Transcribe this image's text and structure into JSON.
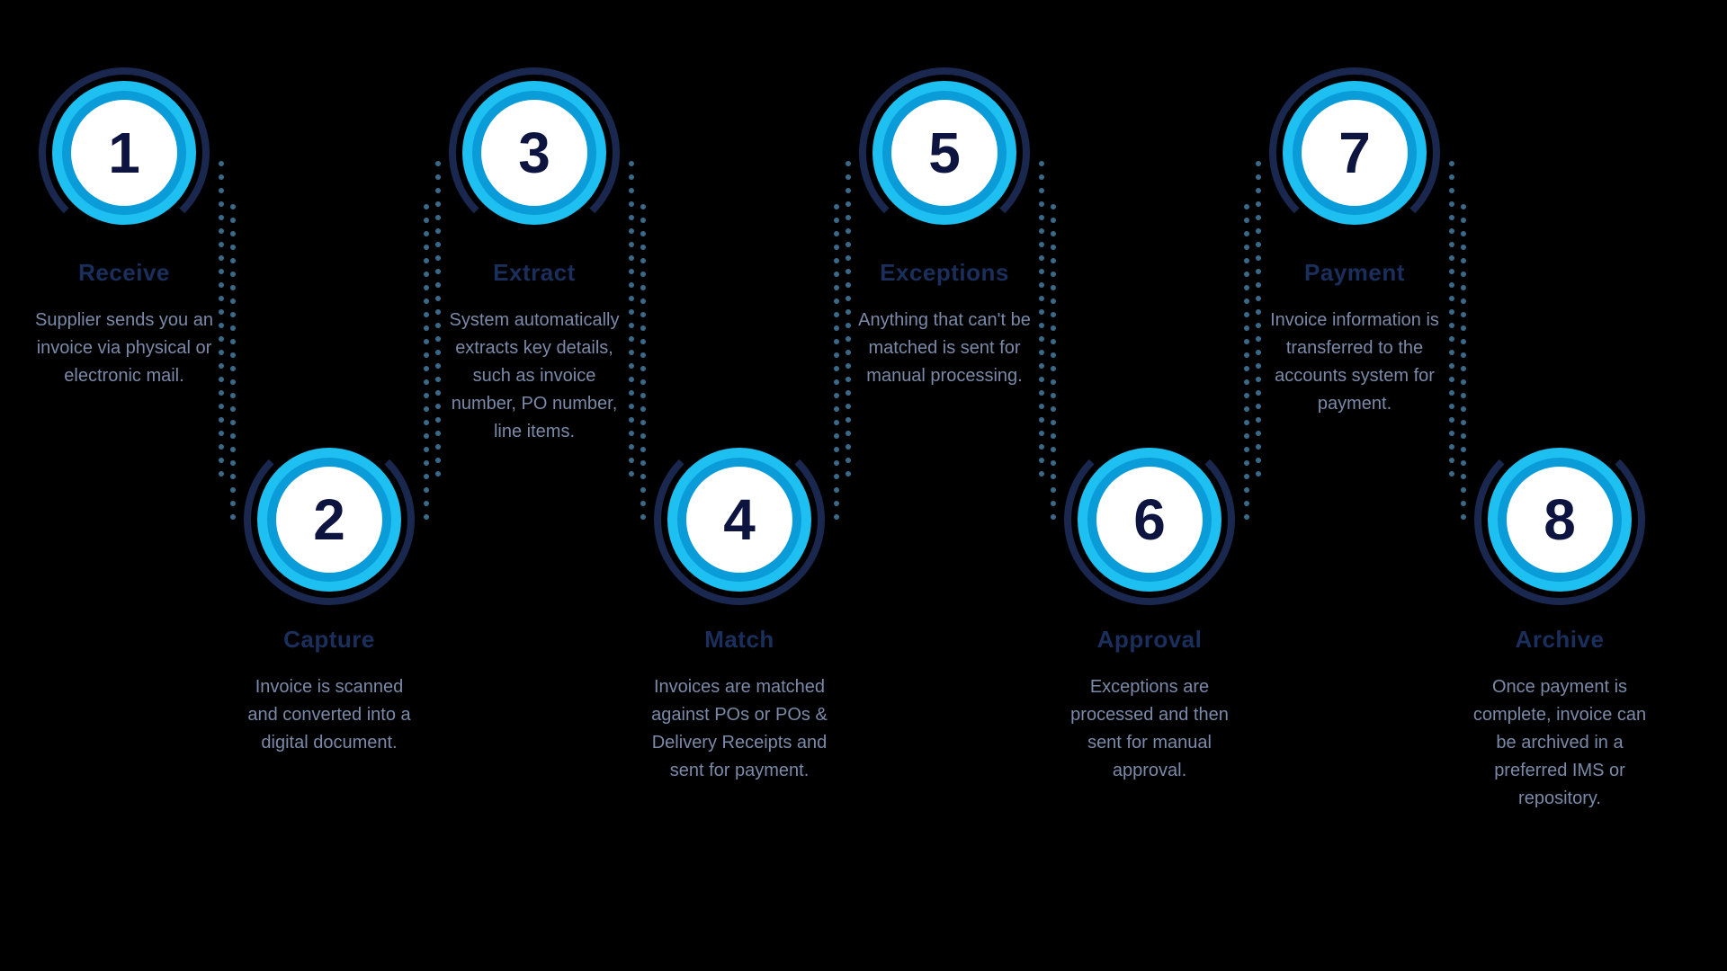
{
  "diagram_type": "process-flow-infographic",
  "background_color": "#000000",
  "text_color": "#7a8aa8",
  "title_color": "#1a2f5c",
  "number_color": "#0d1440",
  "ring_outer_color": "#1ec0f2",
  "ring_mid_color": "#0a9cd8",
  "inner_circle_color": "#ffffff",
  "arc_color": "#1a2850",
  "dot_color": "#3a6a8a",
  "number_fontsize": 64,
  "title_fontsize": 26,
  "desc_fontsize": 20,
  "steps": [
    {
      "num": "1",
      "title": "Receive",
      "desc": "Supplier sends you an invoice via physical or electronic mail.",
      "row": "top"
    },
    {
      "num": "2",
      "title": "Capture",
      "desc": "Invoice is scanned and converted into a digital document.",
      "row": "bottom"
    },
    {
      "num": "3",
      "title": "Extract",
      "desc": "System automatically extracts key details, such as invoice number, PO number, line items.",
      "row": "top"
    },
    {
      "num": "4",
      "title": "Match",
      "desc": "Invoices are matched against POs or POs & Delivery Receipts and sent for payment.",
      "row": "bottom"
    },
    {
      "num": "5",
      "title": "Exceptions",
      "desc": "Anything that can't be matched is sent for manual processing.",
      "row": "top"
    },
    {
      "num": "6",
      "title": "Approval",
      "desc": "Exceptions are processed and then sent for manual approval.",
      "row": "bottom"
    },
    {
      "num": "7",
      "title": "Payment",
      "desc": "Invoice information is transferred to the accounts system for payment.",
      "row": "top"
    },
    {
      "num": "8",
      "title": "Archive",
      "desc": "Once payment is complete, invoice can be archived in a preferred IMS or repository.",
      "row": "bottom"
    }
  ]
}
